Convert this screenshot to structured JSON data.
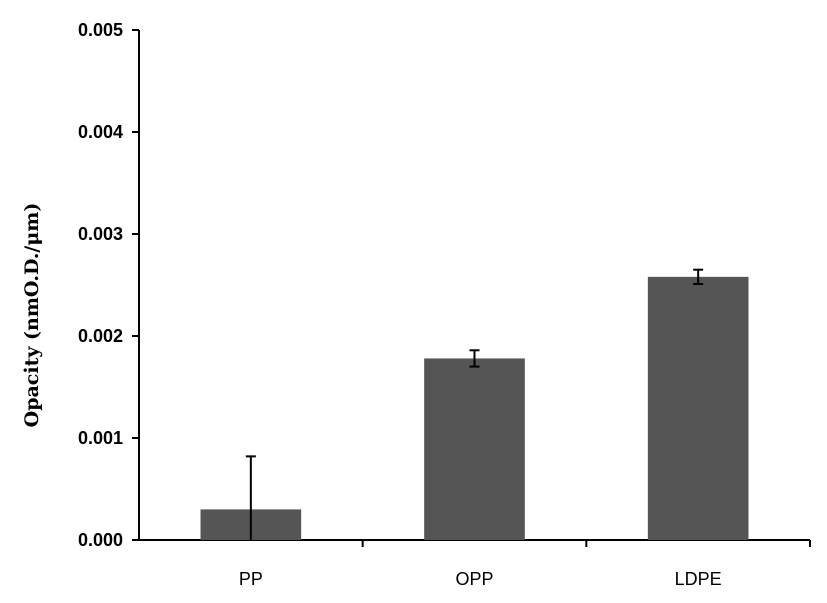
{
  "chart_data": {
    "type": "bar",
    "title": "",
    "xlabel": "",
    "ylabel": "Opacity (nmO.D./μm)",
    "categories": [
      "PP",
      "OPP",
      "LDPE"
    ],
    "values": [
      0.0003,
      0.00178,
      0.00258
    ],
    "errors": [
      0.00052,
      8e-05,
      7e-05
    ],
    "ylim": [
      0,
      0.005
    ],
    "yticks": [
      0,
      0.001,
      0.002,
      0.003,
      0.004,
      0.005
    ],
    "ytick_labels": [
      "0.000",
      "0.001",
      "0.002",
      "0.003",
      "0.004",
      "0.005"
    ],
    "grid": false,
    "bar_color": "#555555",
    "axis_color": "#000000"
  }
}
